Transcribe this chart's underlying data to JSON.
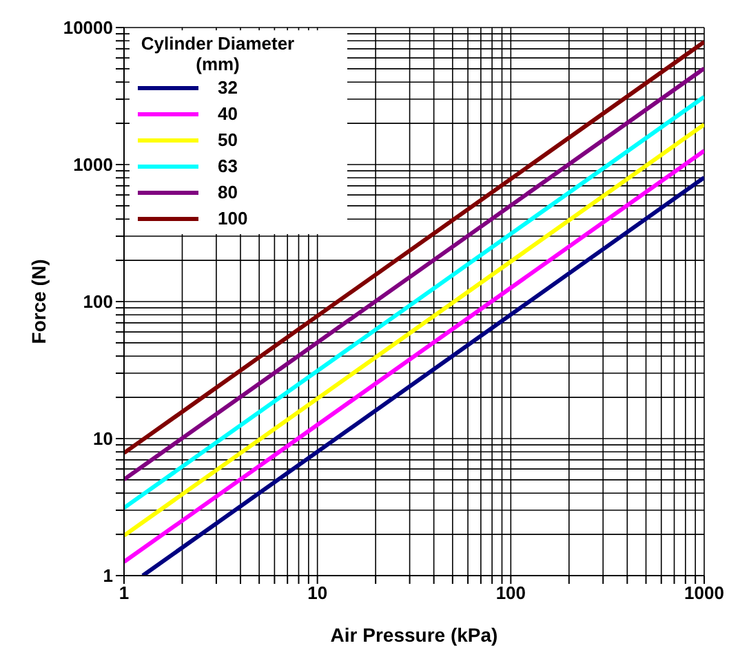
{
  "chart_data": {
    "type": "line",
    "xlabel": "Air Pressure (kPa)",
    "ylabel": "Force (N)",
    "legend_title": "Cylinder Diameter (mm)",
    "legend": "top left",
    "grid": true,
    "log": "xy",
    "marker": "none",
    "line_style": "solid",
    "xlim": [
      1,
      1000
    ],
    "ylim": [
      1,
      10000
    ],
    "xticks": [
      1,
      {
        "value": 2,
        "label": null
      },
      {
        "value": 3,
        "label": null
      },
      {
        "value": 4,
        "label": null
      },
      {
        "value": 5,
        "label": null
      },
      {
        "value": 6,
        "label": null
      },
      {
        "value": 7,
        "label": null
      },
      {
        "value": 8,
        "label": null
      },
      {
        "value": 9,
        "label": null
      },
      10,
      {
        "value": 20,
        "label": null
      },
      {
        "value": 30,
        "label": null
      },
      {
        "value": 40,
        "label": null
      },
      {
        "value": 50,
        "label": null
      },
      {
        "value": 60,
        "label": null
      },
      {
        "value": 70,
        "label": null
      },
      {
        "value": 80,
        "label": null
      },
      {
        "value": 90,
        "label": null
      },
      100,
      {
        "value": 200,
        "label": null
      },
      {
        "value": 300,
        "label": null
      },
      {
        "value": 400,
        "label": null
      },
      {
        "value": 500,
        "label": null
      },
      {
        "value": 600,
        "label": null
      },
      {
        "value": 700,
        "label": null
      },
      {
        "value": 800,
        "label": null
      },
      {
        "value": 900,
        "label": null
      },
      1000
    ],
    "yticks": [
      1,
      {
        "value": 2,
        "label": null
      },
      {
        "value": 3,
        "label": null
      },
      {
        "value": 4,
        "label": null
      },
      {
        "value": 5,
        "label": null
      },
      {
        "value": 6,
        "label": null
      },
      {
        "value": 7,
        "label": null
      },
      {
        "value": 8,
        "label": null
      },
      {
        "value": 9,
        "label": null
      },
      10,
      {
        "value": 20,
        "label": null
      },
      {
        "value": 30,
        "label": null
      },
      {
        "value": 40,
        "label": null
      },
      {
        "value": 50,
        "label": null
      },
      {
        "value": 60,
        "label": null
      },
      {
        "value": 70,
        "label": null
      },
      {
        "value": 80,
        "label": null
      },
      {
        "value": 90,
        "label": null
      },
      100,
      {
        "value": 200,
        "label": null
      },
      {
        "value": 300,
        "label": null
      },
      {
        "value": 400,
        "label": null
      },
      {
        "value": 500,
        "label": null
      },
      {
        "value": 600,
        "label": null
      },
      {
        "value": 700,
        "label": null
      },
      {
        "value": 800,
        "label": null
      },
      {
        "value": 900,
        "label": null
      },
      1000,
      {
        "value": 2000,
        "label": null
      },
      {
        "value": 3000,
        "label": null
      },
      {
        "value": 4000,
        "label": null
      },
      {
        "value": 5000,
        "label": null
      },
      {
        "value": 6000,
        "label": null
      },
      {
        "value": 7000,
        "label": null
      },
      {
        "value": 8000,
        "label": null
      },
      {
        "value": 9000,
        "label": null
      },
      10000
    ],
    "series": [
      {
        "name": "32",
        "color": "#000080",
        "x": [
          1.25,
          1000
        ],
        "values": [
          1.0,
          804
        ]
      },
      {
        "name": "40",
        "color": "#ff00ff",
        "x": [
          1,
          1000
        ],
        "values": [
          1.26,
          1260
        ]
      },
      {
        "name": "50",
        "color": "#ffff00",
        "x": [
          1,
          1000
        ],
        "values": [
          1.96,
          1960
        ]
      },
      {
        "name": "63",
        "color": "#00ffff",
        "x": [
          1,
          1000
        ],
        "values": [
          3.12,
          3120
        ]
      },
      {
        "name": "80",
        "color": "#800080",
        "x": [
          1,
          1000
        ],
        "values": [
          5.03,
          5030
        ]
      },
      {
        "name": "100",
        "color": "#800000",
        "x": [
          1,
          1000
        ],
        "values": [
          7.85,
          7850
        ]
      }
    ]
  }
}
